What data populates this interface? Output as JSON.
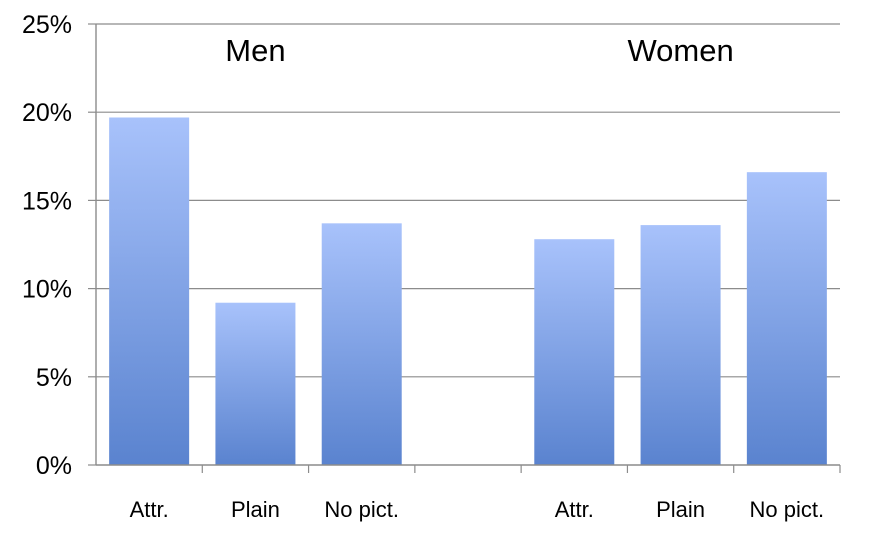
{
  "chart_data": {
    "type": "bar",
    "y_ticks": [
      "0%",
      "5%",
      "10%",
      "15%",
      "20%",
      "25%"
    ],
    "ylim": [
      0,
      25
    ],
    "grid": true,
    "bar_color_top": "#a8c2fb",
    "bar_color_bottom": "#5a83cf",
    "categories": [
      "Attr.",
      "Plain",
      "No pict.",
      "",
      "Attr.",
      "Plain",
      "No pict."
    ],
    "values": [
      19.7,
      9.2,
      13.7,
      null,
      12.8,
      13.6,
      16.6
    ],
    "group_labels": [
      {
        "text": "Men",
        "category_span": [
          0,
          2
        ]
      },
      {
        "text": "Women",
        "category_span": [
          4,
          6
        ]
      }
    ],
    "legend": "none"
  }
}
